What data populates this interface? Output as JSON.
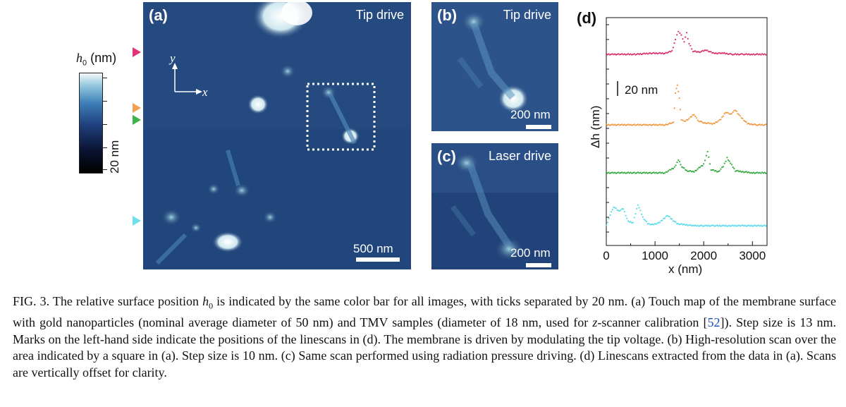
{
  "colorbar": {
    "title_symbol": "h",
    "title_sub": "0",
    "title_unit": "(nm)",
    "label": "20 nm"
  },
  "axes_indicator": {
    "y": "y",
    "x": "x"
  },
  "panel_a": {
    "label": "(a)",
    "title": "Tip drive",
    "scalebar_text": "500 nm"
  },
  "panel_b": {
    "label": "(b)",
    "title": "Tip drive",
    "scalebar_text": "200 nm"
  },
  "panel_c": {
    "label": "(c)",
    "title": "Laser drive",
    "scalebar_text": "200 nm"
  },
  "panel_d": {
    "label": "(d)",
    "ylabel": "Δh (nm)",
    "xlabel": "x (nm)",
    "scale_text": "20 nm"
  },
  "markers": [
    {
      "name": "magenta",
      "color": "#e0357a"
    },
    {
      "name": "orange",
      "color": "#f0a050"
    },
    {
      "name": "green",
      "color": "#3bb24a"
    },
    {
      "name": "cyan",
      "color": "#6fe0ec"
    }
  ],
  "chart_data": {
    "type": "scatter",
    "xlabel": "x (nm)",
    "ylabel": "Δh (nm)",
    "xlim": [
      0,
      3300
    ],
    "xticks": [
      0,
      1000,
      2000,
      3000
    ],
    "grid": false,
    "series": [
      {
        "color": "#d8306f",
        "offset": 0,
        "x": [
          0,
          300,
          600,
          900,
          1200,
          1350,
          1420,
          1480,
          1540,
          1600,
          1650,
          1700,
          1780,
          1900,
          2050,
          2200,
          2400,
          2600,
          2800,
          3000,
          3200,
          3300
        ],
        "y": [
          0,
          0,
          0,
          1,
          1,
          3,
          14,
          22,
          18,
          12,
          20,
          10,
          3,
          2,
          4,
          1,
          1,
          0,
          0,
          0,
          0,
          0
        ]
      },
      {
        "color": "#f09a42",
        "offset": 0,
        "x": [
          0,
          300,
          600,
          900,
          1200,
          1380,
          1420,
          1460,
          1500,
          1540,
          1600,
          1700,
          1800,
          1880,
          2000,
          2200,
          2350,
          2450,
          2550,
          2650,
          2750,
          2900,
          3100,
          3300
        ],
        "y": [
          0,
          0,
          0,
          0,
          0,
          2,
          30,
          38,
          25,
          5,
          3,
          6,
          10,
          4,
          2,
          1,
          5,
          12,
          10,
          14,
          8,
          1,
          0,
          0
        ]
      },
      {
        "color": "#35a83f",
        "offset": 0,
        "x": [
          0,
          300,
          600,
          900,
          1200,
          1400,
          1480,
          1550,
          1650,
          1800,
          2000,
          2080,
          2150,
          2300,
          2400,
          2480,
          2550,
          2650,
          2800,
          3000,
          3200,
          3300
        ],
        "y": [
          0,
          0,
          0,
          0,
          0,
          5,
          12,
          6,
          2,
          1,
          8,
          20,
          3,
          1,
          6,
          14,
          9,
          2,
          1,
          0,
          0,
          0
        ]
      },
      {
        "color": "#5cdbe8",
        "offset": 0,
        "x": [
          0,
          80,
          150,
          250,
          350,
          450,
          550,
          650,
          750,
          850,
          950,
          1100,
          1250,
          1350,
          1450,
          1600,
          1800,
          2000,
          2200,
          2500,
          2800,
          3100,
          3300
        ],
        "y": [
          0,
          10,
          18,
          14,
          16,
          4,
          3,
          20,
          8,
          2,
          1,
          3,
          10,
          6,
          2,
          1,
          0,
          0,
          0,
          0,
          0,
          0,
          0
        ]
      }
    ]
  },
  "caption": {
    "p1": "FIG. 3.    The relative surface position ",
    "h": "h",
    "sub": "0",
    "p2": " is indicated by the same color bar for all images, with ticks separated by 20 nm. (a) Touch map of the membrane surface with gold nanoparticles (nominal average diameter of 50 nm) and TMV samples (diameter of 18 nm, used for ",
    "z": "z",
    "p3": "-scanner calibration [",
    "ref": "52",
    "p4": "]). Step size is 13 nm. Marks on the left-hand side indicate the positions of the linescans in (d). The membrane is driven by modulating the tip voltage. (b) High-resolution scan over the area indicated by a square in (a). Step size is 10 nm. (c) Same scan performed using radiation pressure driving. (d) Linescans extracted from the data in (a). Scans are vertically offset for clarity."
  }
}
